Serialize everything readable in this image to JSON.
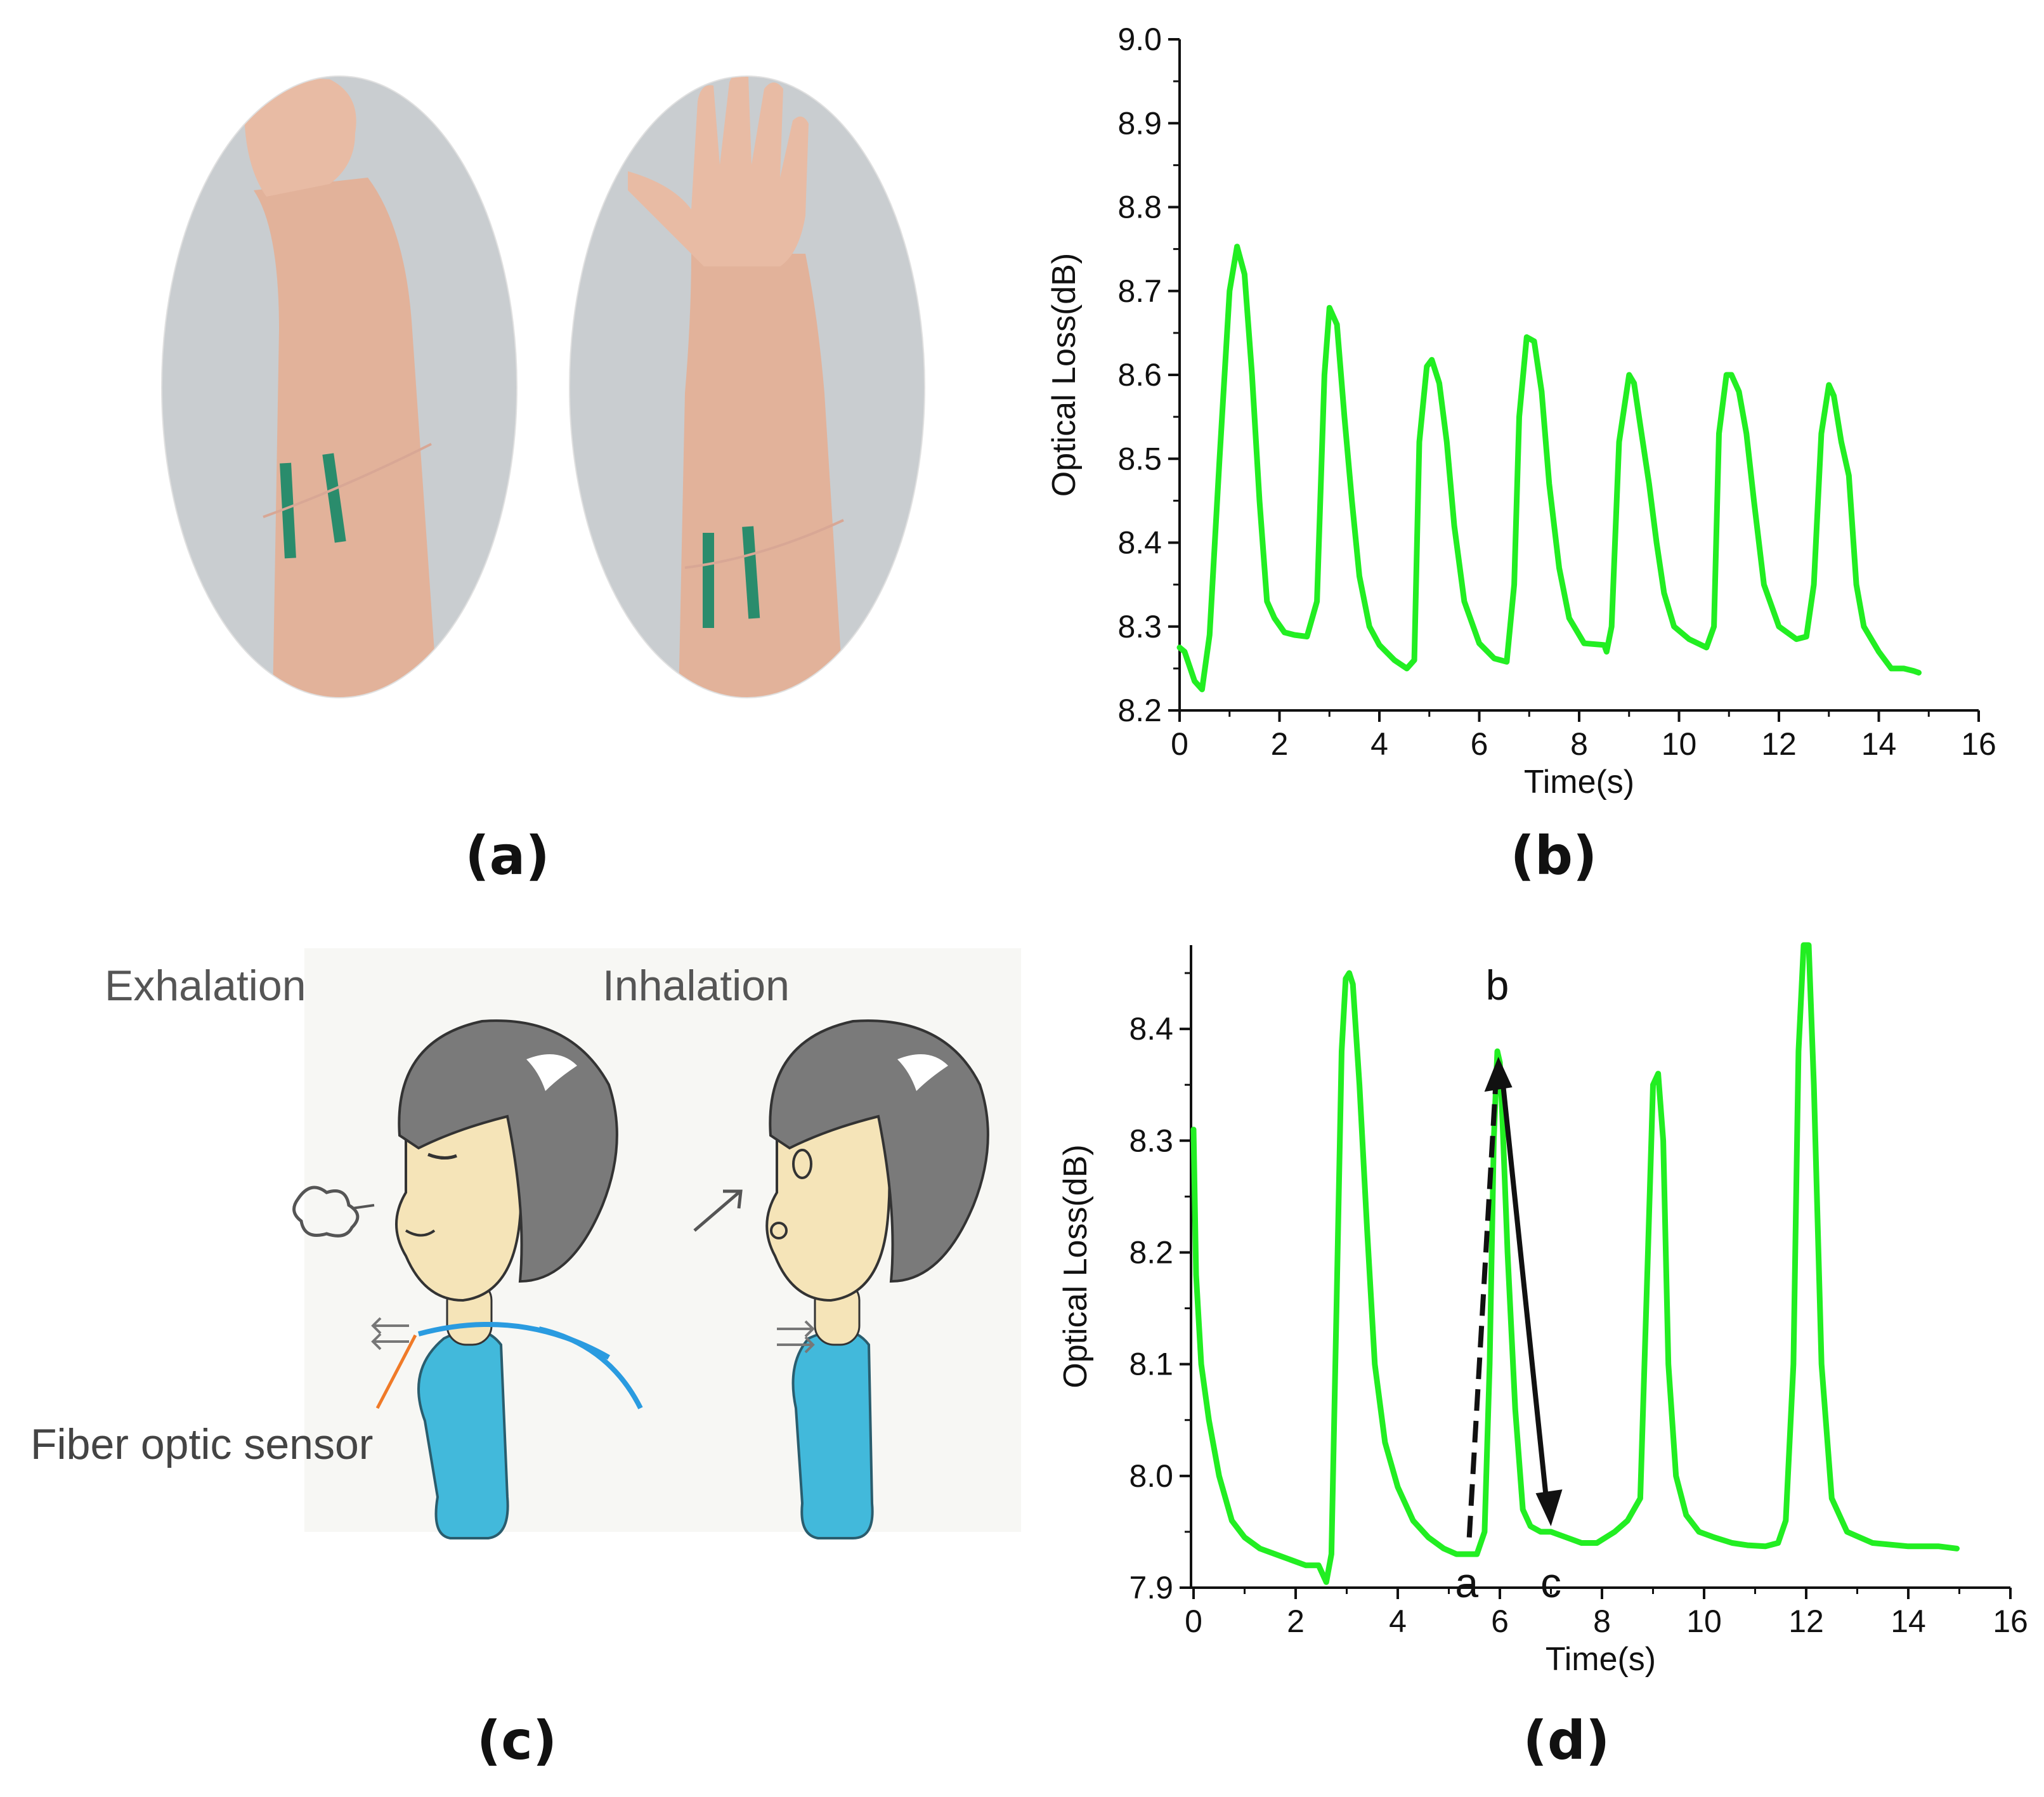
{
  "panel_labels": {
    "a": "(a)",
    "b": "(b)",
    "c": "(c)",
    "d": "(d)"
  },
  "colors": {
    "trace": "#22ee22",
    "axis": "#111111",
    "skin": "#e9bfa4",
    "shirt": "#42b9db",
    "hair": "#7a7a7a",
    "tape": "#2a8c6c",
    "fiber": "#2a9be0",
    "pointer": "#f07a28"
  },
  "illustration": {
    "exhalation_label": "Exhalation",
    "inhalation_label": "Inhalation",
    "sensor_label": "Fiber optic sensor"
  },
  "chart_data": [
    {
      "id": "b",
      "type": "line",
      "xlabel": "Time(s)",
      "ylabel": "Optical Loss(dB)",
      "xlim": [
        0,
        16
      ],
      "ylim": [
        8.2,
        9.0
      ],
      "xticks": [
        0,
        2,
        4,
        6,
        8,
        10,
        12,
        14,
        16
      ],
      "yticks": [
        8.2,
        8.3,
        8.4,
        8.5,
        8.6,
        8.7,
        8.8,
        8.9,
        9.0
      ],
      "grid": false,
      "series": [
        {
          "x": [
            0,
            0.1,
            0.3,
            0.45,
            0.6,
            0.8,
            1.0,
            1.15,
            1.3,
            1.45,
            1.6,
            1.75,
            1.9,
            2.1,
            2.3,
            2.55,
            2.75,
            2.9,
            3.0,
            3.15,
            3.3,
            3.45,
            3.6,
            3.8,
            4.0,
            4.3,
            4.55,
            4.7,
            4.8,
            4.95,
            5.05,
            5.2,
            5.35,
            5.5,
            5.7,
            6.0,
            6.3,
            6.55,
            6.7,
            6.8,
            6.95,
            7.1,
            7.25,
            7.4,
            7.6,
            7.8,
            8.1,
            8.5,
            8.55,
            8.65,
            8.8,
            9.0,
            9.1,
            9.25,
            9.4,
            9.55,
            9.7,
            9.9,
            10.2,
            10.55,
            10.7,
            10.8,
            10.95,
            11.05,
            11.2,
            11.35,
            11.5,
            11.7,
            12.0,
            12.35,
            12.55,
            12.7,
            12.85,
            13.0,
            13.1,
            13.25,
            13.4,
            13.55,
            13.7,
            14.0,
            14.25,
            14.5,
            14.7,
            14.8
          ],
          "y": [
            8.275,
            8.27,
            8.235,
            8.225,
            8.29,
            8.5,
            8.7,
            8.753,
            8.72,
            8.6,
            8.45,
            8.33,
            8.31,
            8.293,
            8.29,
            8.288,
            8.33,
            8.6,
            8.68,
            8.66,
            8.55,
            8.45,
            8.36,
            8.3,
            8.278,
            8.26,
            8.25,
            8.26,
            8.52,
            8.61,
            8.618,
            8.59,
            8.52,
            8.42,
            8.33,
            8.28,
            8.262,
            8.258,
            8.35,
            8.55,
            8.645,
            8.64,
            8.58,
            8.47,
            8.37,
            8.31,
            8.28,
            8.278,
            8.27,
            8.3,
            8.52,
            8.6,
            8.59,
            8.53,
            8.47,
            8.4,
            8.34,
            8.3,
            8.285,
            8.275,
            8.3,
            8.53,
            8.6,
            8.6,
            8.58,
            8.53,
            8.45,
            8.35,
            8.3,
            8.285,
            8.288,
            8.35,
            8.53,
            8.588,
            8.575,
            8.52,
            8.48,
            8.35,
            8.3,
            8.27,
            8.25,
            8.25,
            8.247,
            8.245
          ]
        }
      ]
    },
    {
      "id": "d",
      "type": "line",
      "xlabel": "Time(s)",
      "ylabel": "Optical Loss(dB)",
      "xlim": [
        -0.05,
        16
      ],
      "ylim": [
        7.9,
        8.475
      ],
      "xticks": [
        0,
        2,
        4,
        6,
        8,
        10,
        12,
        14,
        16
      ],
      "yticks": [
        7.9,
        8.0,
        8.1,
        8.2,
        8.3,
        8.4
      ],
      "grid": false,
      "series": [
        {
          "x": [
            0,
            0.05,
            0.15,
            0.3,
            0.5,
            0.75,
            1.0,
            1.3,
            1.6,
            1.9,
            2.2,
            2.45,
            2.6,
            2.7,
            2.8,
            2.9,
            2.98,
            3.05,
            3.12,
            3.25,
            3.4,
            3.55,
            3.75,
            4.0,
            4.3,
            4.6,
            4.9,
            5.15,
            5.35,
            5.55,
            5.7,
            5.8,
            5.88,
            5.95,
            6.0,
            6.05,
            6.15,
            6.3,
            6.45,
            6.6,
            6.8,
            7.0,
            7.3,
            7.6,
            7.9,
            8.25,
            8.5,
            8.75,
            8.9,
            9.0,
            9.1,
            9.2,
            9.3,
            9.45,
            9.65,
            9.9,
            10.2,
            10.55,
            10.85,
            11.2,
            11.45,
            11.6,
            11.75,
            11.85,
            11.95,
            12.05,
            12.15,
            12.3,
            12.5,
            12.8,
            13.3,
            14.0,
            14.6,
            14.95
          ],
          "y": [
            8.31,
            8.18,
            8.1,
            8.05,
            8.0,
            7.96,
            7.945,
            7.935,
            7.93,
            7.925,
            7.92,
            7.92,
            7.905,
            7.93,
            8.15,
            8.38,
            8.445,
            8.45,
            8.44,
            8.35,
            8.22,
            8.1,
            8.03,
            7.99,
            7.96,
            7.945,
            7.935,
            7.93,
            7.93,
            7.93,
            7.95,
            8.1,
            8.3,
            8.38,
            8.37,
            8.32,
            8.2,
            8.06,
            7.97,
            7.955,
            7.95,
            7.95,
            7.945,
            7.94,
            7.94,
            7.95,
            7.96,
            7.98,
            8.2,
            8.35,
            8.36,
            8.3,
            8.1,
            8.0,
            7.965,
            7.95,
            7.945,
            7.94,
            7.938,
            7.937,
            7.94,
            7.96,
            8.1,
            8.38,
            8.475,
            8.475,
            8.35,
            8.1,
            7.98,
            7.95,
            7.94,
            7.937,
            7.937,
            7.935
          ]
        }
      ],
      "annotations": [
        {
          "label": "a",
          "x": 5.35,
          "y": 7.93
        },
        {
          "label": "b",
          "x": 5.95,
          "y": 8.425
        },
        {
          "label": "c",
          "x": 7.0,
          "y": 7.93
        }
      ]
    }
  ]
}
